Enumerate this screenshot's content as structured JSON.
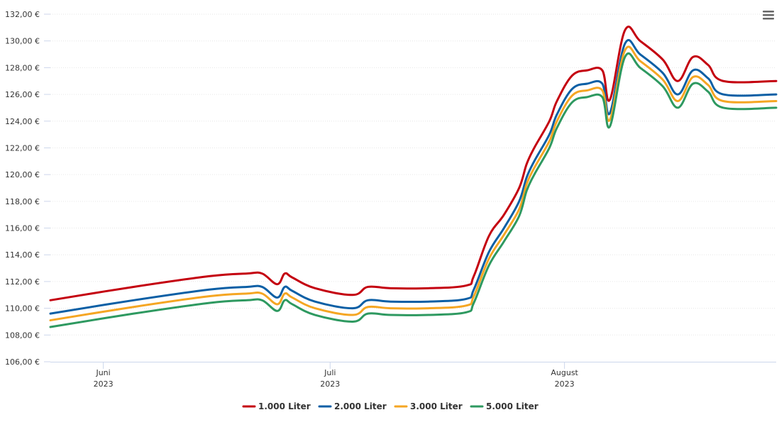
{
  "chart_data": {
    "type": "line",
    "title": "",
    "xlabel": "",
    "ylabel": "",
    "ylim": [
      106,
      132
    ],
    "y_ticks": [
      106,
      108,
      110,
      112,
      114,
      116,
      118,
      120,
      122,
      124,
      126,
      128,
      130,
      132
    ],
    "y_tick_labels": [
      "106,00 €",
      "108,00 €",
      "110,00 €",
      "112,00 €",
      "114,00 €",
      "116,00 €",
      "118,00 €",
      "120,00 €",
      "122,00 €",
      "124,00 €",
      "126,00 €",
      "128,00 €",
      "130,00 €",
      "132,00 €"
    ],
    "x_range": [
      "2023-05-25",
      "2023-08-29"
    ],
    "x_ticks": [
      {
        "date": "2023-06-01",
        "month": "Juni",
        "year": "2023"
      },
      {
        "date": "2023-07-01",
        "month": "Juli",
        "year": "2023"
      },
      {
        "date": "2023-08-01",
        "month": "August",
        "year": "2023"
      }
    ],
    "grid": true,
    "legend_position": "bottom-center",
    "colors": [
      "#c4000f",
      "#0b5fa5",
      "#f5a623",
      "#2e9960"
    ],
    "series": [
      {
        "name": "1.000 Liter",
        "points": [
          [
            "2023-05-25",
            110.6
          ],
          [
            "2023-06-05",
            111.6
          ],
          [
            "2023-06-15",
            112.4
          ],
          [
            "2023-06-20",
            112.6
          ],
          [
            "2023-06-22",
            112.6
          ],
          [
            "2023-06-24",
            111.8
          ],
          [
            "2023-06-25",
            112.6
          ],
          [
            "2023-06-26",
            112.3
          ],
          [
            "2023-06-29",
            111.5
          ],
          [
            "2023-07-04",
            111.0
          ],
          [
            "2023-07-06",
            111.6
          ],
          [
            "2023-07-09",
            111.5
          ],
          [
            "2023-07-14",
            111.5
          ],
          [
            "2023-07-19",
            111.7
          ],
          [
            "2023-07-20",
            112.4
          ],
          [
            "2023-07-22",
            115.4
          ],
          [
            "2023-07-24",
            117.0
          ],
          [
            "2023-07-26",
            119.0
          ],
          [
            "2023-07-27",
            120.8
          ],
          [
            "2023-07-28",
            122.0
          ],
          [
            "2023-07-30",
            124.0
          ],
          [
            "2023-07-31",
            125.5
          ],
          [
            "2023-08-02",
            127.4
          ],
          [
            "2023-08-04",
            127.8
          ],
          [
            "2023-08-06",
            127.8
          ],
          [
            "2023-08-07",
            125.6
          ],
          [
            "2023-08-09",
            130.8
          ],
          [
            "2023-08-11",
            130.0
          ],
          [
            "2023-08-14",
            128.6
          ],
          [
            "2023-08-16",
            127.0
          ],
          [
            "2023-08-18",
            128.8
          ],
          [
            "2023-08-20",
            128.2
          ],
          [
            "2023-08-22",
            127.0
          ],
          [
            "2023-08-29",
            127.0
          ]
        ]
      },
      {
        "name": "2.000 Liter",
        "points": [
          [
            "2023-05-25",
            109.6
          ],
          [
            "2023-06-05",
            110.6
          ],
          [
            "2023-06-15",
            111.4
          ],
          [
            "2023-06-20",
            111.6
          ],
          [
            "2023-06-22",
            111.6
          ],
          [
            "2023-06-24",
            110.8
          ],
          [
            "2023-06-25",
            111.6
          ],
          [
            "2023-06-26",
            111.3
          ],
          [
            "2023-06-29",
            110.5
          ],
          [
            "2023-07-04",
            110.0
          ],
          [
            "2023-07-06",
            110.6
          ],
          [
            "2023-07-09",
            110.5
          ],
          [
            "2023-07-14",
            110.5
          ],
          [
            "2023-07-19",
            110.7
          ],
          [
            "2023-07-20",
            111.4
          ],
          [
            "2023-07-22",
            114.2
          ],
          [
            "2023-07-24",
            116.0
          ],
          [
            "2023-07-26",
            118.0
          ],
          [
            "2023-07-27",
            119.8
          ],
          [
            "2023-07-28",
            121.0
          ],
          [
            "2023-07-30",
            123.0
          ],
          [
            "2023-07-31",
            124.5
          ],
          [
            "2023-08-02",
            126.4
          ],
          [
            "2023-08-04",
            126.8
          ],
          [
            "2023-08-06",
            126.8
          ],
          [
            "2023-08-07",
            124.6
          ],
          [
            "2023-08-09",
            129.8
          ],
          [
            "2023-08-11",
            129.0
          ],
          [
            "2023-08-14",
            127.6
          ],
          [
            "2023-08-16",
            126.0
          ],
          [
            "2023-08-18",
            127.8
          ],
          [
            "2023-08-20",
            127.2
          ],
          [
            "2023-08-22",
            126.0
          ],
          [
            "2023-08-29",
            126.0
          ]
        ]
      },
      {
        "name": "3.000 Liter",
        "points": [
          [
            "2023-05-25",
            109.1
          ],
          [
            "2023-06-05",
            110.1
          ],
          [
            "2023-06-15",
            110.9
          ],
          [
            "2023-06-20",
            111.1
          ],
          [
            "2023-06-22",
            111.1
          ],
          [
            "2023-06-24",
            110.3
          ],
          [
            "2023-06-25",
            111.1
          ],
          [
            "2023-06-26",
            110.8
          ],
          [
            "2023-06-29",
            110.0
          ],
          [
            "2023-07-04",
            109.5
          ],
          [
            "2023-07-06",
            110.1
          ],
          [
            "2023-07-09",
            110.0
          ],
          [
            "2023-07-14",
            110.0
          ],
          [
            "2023-07-19",
            110.2
          ],
          [
            "2023-07-20",
            110.9
          ],
          [
            "2023-07-22",
            113.7
          ],
          [
            "2023-07-24",
            115.5
          ],
          [
            "2023-07-26",
            117.4
          ],
          [
            "2023-07-27",
            119.3
          ],
          [
            "2023-07-28",
            120.5
          ],
          [
            "2023-07-30",
            122.5
          ],
          [
            "2023-07-31",
            124.0
          ],
          [
            "2023-08-02",
            125.9
          ],
          [
            "2023-08-04",
            126.3
          ],
          [
            "2023-08-06",
            126.3
          ],
          [
            "2023-08-07",
            124.1
          ],
          [
            "2023-08-09",
            129.3
          ],
          [
            "2023-08-11",
            128.5
          ],
          [
            "2023-08-14",
            127.1
          ],
          [
            "2023-08-16",
            125.5
          ],
          [
            "2023-08-18",
            127.3
          ],
          [
            "2023-08-20",
            126.7
          ],
          [
            "2023-08-22",
            125.5
          ],
          [
            "2023-08-29",
            125.5
          ]
        ]
      },
      {
        "name": "5.000 Liter",
        "points": [
          [
            "2023-05-25",
            108.6
          ],
          [
            "2023-06-05",
            109.6
          ],
          [
            "2023-06-15",
            110.4
          ],
          [
            "2023-06-20",
            110.6
          ],
          [
            "2023-06-22",
            110.6
          ],
          [
            "2023-06-24",
            109.8
          ],
          [
            "2023-06-25",
            110.6
          ],
          [
            "2023-06-26",
            110.3
          ],
          [
            "2023-06-29",
            109.5
          ],
          [
            "2023-07-04",
            109.0
          ],
          [
            "2023-07-06",
            109.6
          ],
          [
            "2023-07-09",
            109.5
          ],
          [
            "2023-07-14",
            109.5
          ],
          [
            "2023-07-19",
            109.7
          ],
          [
            "2023-07-20",
            110.4
          ],
          [
            "2023-07-22",
            113.2
          ],
          [
            "2023-07-24",
            115.0
          ],
          [
            "2023-07-26",
            116.9
          ],
          [
            "2023-07-27",
            118.8
          ],
          [
            "2023-07-28",
            120.0
          ],
          [
            "2023-07-30",
            122.0
          ],
          [
            "2023-07-31",
            123.5
          ],
          [
            "2023-08-02",
            125.4
          ],
          [
            "2023-08-04",
            125.8
          ],
          [
            "2023-08-06",
            125.8
          ],
          [
            "2023-08-07",
            123.6
          ],
          [
            "2023-08-09",
            128.8
          ],
          [
            "2023-08-11",
            128.0
          ],
          [
            "2023-08-14",
            126.6
          ],
          [
            "2023-08-16",
            125.0
          ],
          [
            "2023-08-18",
            126.8
          ],
          [
            "2023-08-20",
            126.2
          ],
          [
            "2023-08-22",
            125.0
          ],
          [
            "2023-08-29",
            125.0
          ]
        ]
      }
    ]
  },
  "menu": {
    "icon": "hamburger-menu-icon"
  }
}
